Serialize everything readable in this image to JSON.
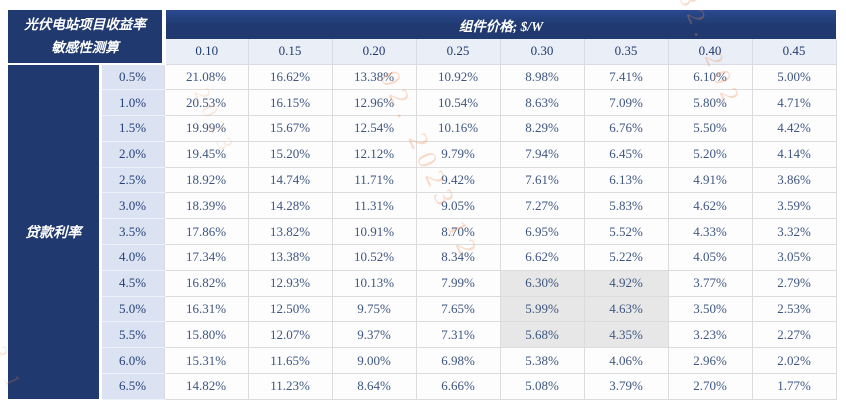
{
  "title": {
    "line1": "光伏电站项目收益率",
    "line2": "敏感性测算"
  },
  "header": {
    "price_axis_label": "组件价格; $/W"
  },
  "row_axis_label": "贷款利率",
  "chart_data": {
    "type": "table",
    "title": "光伏电站项目收益率敏感性测算",
    "column_axis_title": "组件价格; $/W",
    "row_axis_title": "贷款利率",
    "categories": [
      "0.10",
      "0.15",
      "0.20",
      "0.25",
      "0.30",
      "0.35",
      "0.40",
      "0.45"
    ],
    "rows": [
      {
        "rate": "0.5%",
        "values": [
          "21.08%",
          "16.62%",
          "13.38%",
          "10.92%",
          "8.98%",
          "7.41%",
          "6.10%",
          "5.00%"
        ]
      },
      {
        "rate": "1.0%",
        "values": [
          "20.53%",
          "16.15%",
          "12.96%",
          "10.54%",
          "8.63%",
          "7.09%",
          "5.80%",
          "4.71%"
        ]
      },
      {
        "rate": "1.5%",
        "values": [
          "19.99%",
          "15.67%",
          "12.54%",
          "10.16%",
          "8.29%",
          "6.76%",
          "5.50%",
          "4.42%"
        ]
      },
      {
        "rate": "2.0%",
        "values": [
          "19.45%",
          "15.20%",
          "12.12%",
          "9.79%",
          "7.94%",
          "6.45%",
          "5.20%",
          "4.14%"
        ]
      },
      {
        "rate": "2.5%",
        "values": [
          "18.92%",
          "14.74%",
          "11.71%",
          "9.42%",
          "7.61%",
          "6.13%",
          "4.91%",
          "3.86%"
        ]
      },
      {
        "rate": "3.0%",
        "values": [
          "18.39%",
          "14.28%",
          "11.31%",
          "9.05%",
          "7.27%",
          "5.83%",
          "4.62%",
          "3.59%"
        ]
      },
      {
        "rate": "3.5%",
        "values": [
          "17.86%",
          "13.82%",
          "10.91%",
          "8.70%",
          "6.95%",
          "5.52%",
          "4.33%",
          "3.32%"
        ]
      },
      {
        "rate": "4.0%",
        "values": [
          "17.34%",
          "13.38%",
          "10.52%",
          "8.34%",
          "6.62%",
          "5.22%",
          "4.05%",
          "3.05%"
        ]
      },
      {
        "rate": "4.5%",
        "values": [
          "16.82%",
          "12.93%",
          "10.13%",
          "7.99%",
          "6.30%",
          "4.92%",
          "3.77%",
          "2.79%"
        ]
      },
      {
        "rate": "5.0%",
        "values": [
          "16.31%",
          "12.50%",
          "9.75%",
          "7.65%",
          "5.99%",
          "4.63%",
          "3.50%",
          "2.53%"
        ]
      },
      {
        "rate": "5.5%",
        "values": [
          "15.80%",
          "12.07%",
          "9.37%",
          "7.31%",
          "5.68%",
          "4.35%",
          "3.23%",
          "2.27%"
        ]
      },
      {
        "rate": "6.0%",
        "values": [
          "15.31%",
          "11.65%",
          "9.00%",
          "6.98%",
          "5.38%",
          "4.06%",
          "2.96%",
          "2.02%"
        ]
      },
      {
        "rate": "6.5%",
        "values": [
          "14.82%",
          "11.23%",
          "8.64%",
          "6.66%",
          "5.08%",
          "3.79%",
          "2.70%",
          "1.77%"
        ]
      }
    ],
    "highlight": {
      "rates": [
        "4.5%",
        "5.0%",
        "5.5%"
      ],
      "columns": [
        "0.30",
        "0.35"
      ]
    }
  },
  "colors": {
    "header_navy": "#20396f",
    "subheader_bg": "#eaeef7",
    "rate_column_bg": "#dbe2f1",
    "highlight_gray": "#e7e7e7",
    "value_text": "#3e5680",
    "watermark_orange": "#f08c4e"
  },
  "watermark": {
    "fragments": [
      "82. 202",
      "02. 2023 12",
      "2023",
      "23 1"
    ]
  }
}
